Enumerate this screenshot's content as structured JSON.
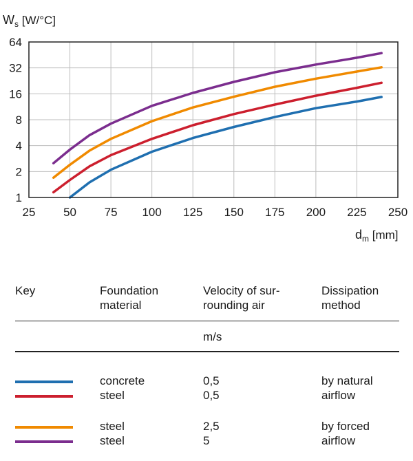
{
  "chart_data": {
    "type": "line",
    "ylabel_main": "W",
    "ylabel_sub": "s",
    "ylabel_unit": " [W/°C]",
    "xlabel_main": "d",
    "xlabel_sub": "m",
    "xlabel_unit": " [mm]",
    "y_scale": "log2",
    "xlim": [
      25,
      250
    ],
    "ylim": [
      1,
      64
    ],
    "x_ticks": [
      25,
      50,
      75,
      100,
      125,
      150,
      175,
      200,
      225,
      250
    ],
    "y_ticks": [
      1,
      2,
      4,
      8,
      16,
      32,
      64
    ],
    "grid": true,
    "series": [
      {
        "color": "#1f6fb0",
        "x": [
          50,
          62,
          75,
          100,
          125,
          150,
          175,
          200,
          225,
          240
        ],
        "y": [
          1.0,
          1.5,
          2.1,
          3.4,
          4.9,
          6.6,
          8.6,
          10.9,
          13.0,
          14.7
        ]
      },
      {
        "color": "#cc1f2e",
        "x": [
          40,
          50,
          62,
          75,
          100,
          125,
          150,
          175,
          200,
          225,
          240
        ],
        "y": [
          1.15,
          1.6,
          2.3,
          3.1,
          4.8,
          6.9,
          9.3,
          12.0,
          15.2,
          18.8,
          21.5
        ]
      },
      {
        "color": "#f08a00",
        "x": [
          40,
          50,
          62,
          75,
          100,
          125,
          150,
          175,
          200,
          225,
          240
        ],
        "y": [
          1.7,
          2.4,
          3.5,
          4.8,
          7.7,
          11.1,
          14.8,
          19.3,
          24.0,
          29.0,
          32.5
        ]
      },
      {
        "color": "#7b2d8e",
        "x": [
          40,
          50,
          62,
          75,
          100,
          125,
          150,
          175,
          200,
          225,
          240
        ],
        "y": [
          2.5,
          3.6,
          5.3,
          7.2,
          11.6,
          16.4,
          22.0,
          28.5,
          35.0,
          42.0,
          47.5
        ]
      }
    ]
  },
  "legend": {
    "header": {
      "key": "Key",
      "material": "Foundation\nmaterial",
      "velocity": "Velocity of sur-\nrounding air",
      "method": "Dissipation\nmethod"
    },
    "unit": "m/s",
    "rows": [
      {
        "color": "#1f6fb0",
        "material": "concrete",
        "velocity": "0,5",
        "method": "by natural"
      },
      {
        "color": "#cc1f2e",
        "material": "steel",
        "velocity": "0,5",
        "method": "airflow"
      },
      {
        "color": "#f08a00",
        "material": "steel",
        "velocity": "2,5",
        "method": "by forced"
      },
      {
        "color": "#7b2d8e",
        "material": "steel",
        "velocity": "5",
        "method": "airflow"
      }
    ]
  }
}
